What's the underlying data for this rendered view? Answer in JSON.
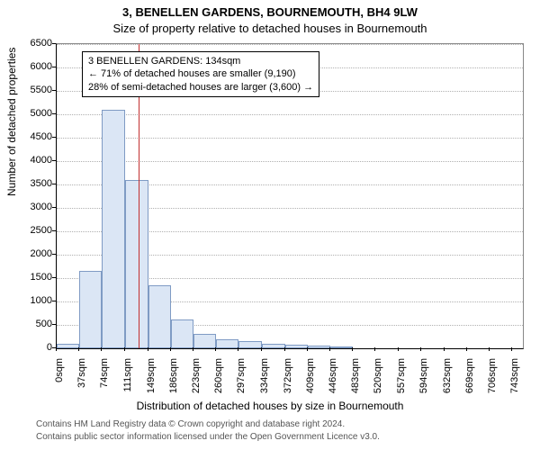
{
  "title_line1": "3, BENELLEN GARDENS, BOURNEMOUTH, BH4 9LW",
  "title_line2": "Size of property relative to detached houses in Bournemouth",
  "ylabel": "Number of detached properties",
  "xlabel": "Distribution of detached houses by size in Bournemouth",
  "ylim": [
    0,
    6500
  ],
  "ytick_step": 500,
  "yticks": [
    0,
    500,
    1000,
    1500,
    2000,
    2500,
    3000,
    3500,
    4000,
    4500,
    5000,
    5500,
    6000,
    6500
  ],
  "x_tick_labels": [
    "0sqm",
    "37sqm",
    "74sqm",
    "111sqm",
    "149sqm",
    "186sqm",
    "223sqm",
    "260sqm",
    "297sqm",
    "334sqm",
    "372sqm",
    "409sqm",
    "446sqm",
    "483sqm",
    "520sqm",
    "557sqm",
    "594sqm",
    "632sqm",
    "669sqm",
    "706sqm",
    "743sqm"
  ],
  "x_tick_positions": [
    0,
    37,
    74,
    111,
    149,
    186,
    223,
    260,
    297,
    334,
    372,
    409,
    446,
    483,
    520,
    557,
    594,
    632,
    669,
    706,
    743
  ],
  "x_range": [
    0,
    760
  ],
  "bars": [
    {
      "x0": 0,
      "x1": 37,
      "value": 100
    },
    {
      "x0": 37,
      "x1": 74,
      "value": 1650
    },
    {
      "x0": 74,
      "x1": 111,
      "value": 5100
    },
    {
      "x0": 111,
      "x1": 149,
      "value": 3600
    },
    {
      "x0": 149,
      "x1": 186,
      "value": 1350
    },
    {
      "x0": 186,
      "x1": 223,
      "value": 620
    },
    {
      "x0": 223,
      "x1": 260,
      "value": 300
    },
    {
      "x0": 260,
      "x1": 297,
      "value": 200
    },
    {
      "x0": 297,
      "x1": 334,
      "value": 150
    },
    {
      "x0": 334,
      "x1": 372,
      "value": 100
    },
    {
      "x0": 372,
      "x1": 409,
      "value": 70
    },
    {
      "x0": 409,
      "x1": 446,
      "value": 60
    },
    {
      "x0": 446,
      "x1": 483,
      "value": 10
    }
  ],
  "bar_fill": "#dbe6f5",
  "bar_border": "#7f9bc4",
  "grid_color": "#b0b0b0",
  "axis_color": "#000000",
  "background": "#ffffff",
  "marker_x": 134,
  "marker_color": "#c23030",
  "annotation": {
    "line1": "3 BENELLEN GARDENS: 134sqm",
    "line2": "← 71% of detached houses are smaller (9,190)",
    "line3": "28% of semi-detached houses are larger (3,600) →"
  },
  "footer_line1": "Contains HM Land Registry data © Crown copyright and database right 2024.",
  "footer_line2": "Contains public sector information licensed under the Open Government Licence v3.0.",
  "title_fontsize": 13,
  "label_fontsize": 12,
  "tick_fontsize": 11,
  "anno_fontsize": 11,
  "footer_fontsize": 10
}
